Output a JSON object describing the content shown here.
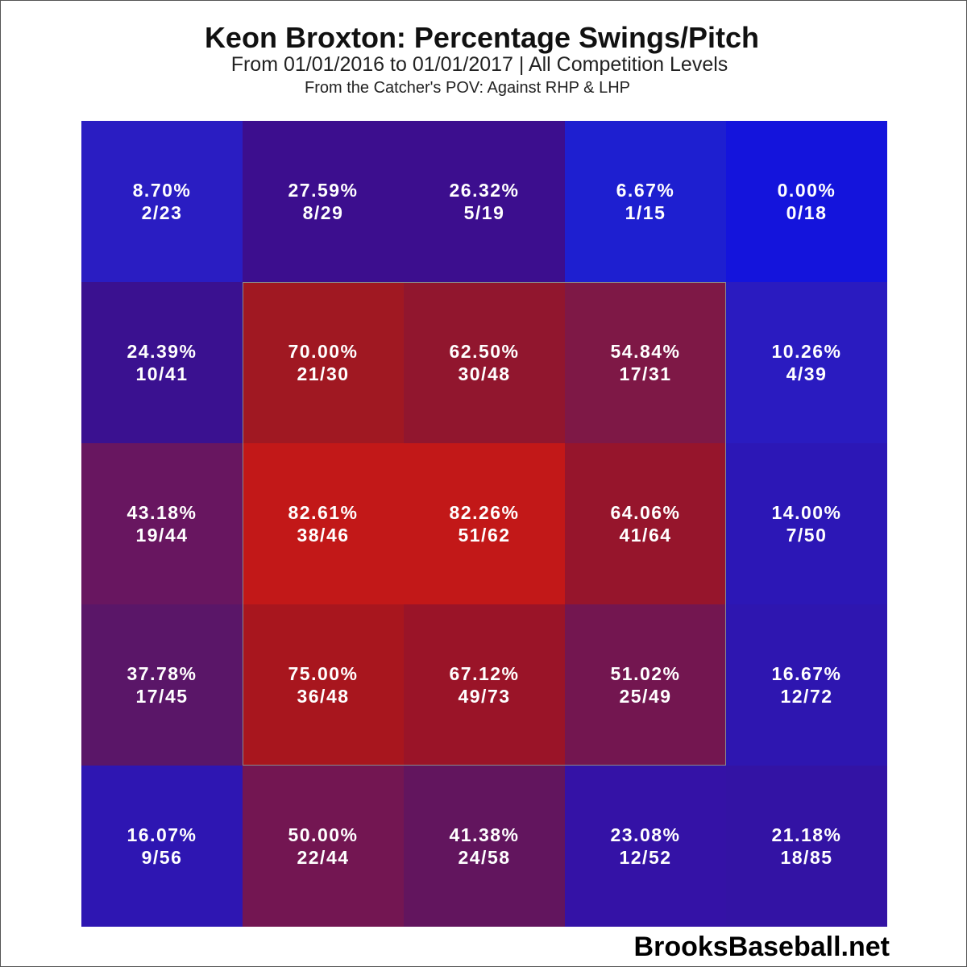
{
  "chart_data": {
    "type": "heatmap",
    "title": "Keon Broxton: Percentage Swings/Pitch",
    "subtitle": "From 01/01/2016 to 01/01/2017 | All Competition Levels",
    "subtitle2": "From the Catcher's POV:   Against RHP & LHP",
    "rows": 5,
    "cols": 5,
    "strike_zone": {
      "rows": [
        1,
        3
      ],
      "cols": [
        1,
        3
      ]
    },
    "cells": [
      [
        {
          "pct": "8.70%",
          "frac": "2/23",
          "value": 8.7,
          "color": "#2a1dc2"
        },
        {
          "pct": "27.59%",
          "frac": "8/29",
          "value": 27.59,
          "color": "#3c0e8e"
        },
        {
          "pct": "26.32%",
          "frac": "5/19",
          "value": 26.32,
          "color": "#3c0e8e"
        },
        {
          "pct": "6.67%",
          "frac": "1/15",
          "value": 6.67,
          "color": "#1e1fd0"
        },
        {
          "pct": "0.00%",
          "frac": "0/18",
          "value": 0.0,
          "color": "#1414dc"
        }
      ],
      [
        {
          "pct": "24.39%",
          "frac": "10/41",
          "value": 24.39,
          "color": "#3a1190"
        },
        {
          "pct": "70.00%",
          "frac": "21/30",
          "value": 70.0,
          "color": "#a01822"
        },
        {
          "pct": "62.50%",
          "frac": "30/48",
          "value": 62.5,
          "color": "#91162e"
        },
        {
          "pct": "54.84%",
          "frac": "17/31",
          "value": 54.84,
          "color": "#7e1846"
        },
        {
          "pct": "10.26%",
          "frac": "4/39",
          "value": 10.26,
          "color": "#2a1bc0"
        }
      ],
      [
        {
          "pct": "43.18%",
          "frac": "19/44",
          "value": 43.18,
          "color": "#681660"
        },
        {
          "pct": "82.61%",
          "frac": "38/46",
          "value": 82.61,
          "color": "#c21818"
        },
        {
          "pct": "82.26%",
          "frac": "51/62",
          "value": 82.26,
          "color": "#c21818"
        },
        {
          "pct": "64.06%",
          "frac": "41/64",
          "value": 64.06,
          "color": "#96152c"
        },
        {
          "pct": "14.00%",
          "frac": "7/50",
          "value": 14.0,
          "color": "#2c17b6"
        }
      ],
      [
        {
          "pct": "37.78%",
          "frac": "17/45",
          "value": 37.78,
          "color": "#5a1668"
        },
        {
          "pct": "75.00%",
          "frac": "36/48",
          "value": 75.0,
          "color": "#a8161e"
        },
        {
          "pct": "67.12%",
          "frac": "49/73",
          "value": 67.12,
          "color": "#9a1428"
        },
        {
          "pct": "51.02%",
          "frac": "25/49",
          "value": 51.02,
          "color": "#731650"
        },
        {
          "pct": "16.67%",
          "frac": "12/72",
          "value": 16.67,
          "color": "#2e16b0"
        }
      ],
      [
        {
          "pct": "16.07%",
          "frac": "9/56",
          "value": 16.07,
          "color": "#2e16b2"
        },
        {
          "pct": "50.00%",
          "frac": "22/44",
          "value": 50.0,
          "color": "#731652"
        },
        {
          "pct": "41.38%",
          "frac": "24/58",
          "value": 41.38,
          "color": "#62155e"
        },
        {
          "pct": "23.08%",
          "frac": "12/52",
          "value": 23.08,
          "color": "#3412a6"
        },
        {
          "pct": "21.18%",
          "frac": "18/85",
          "value": 21.18,
          "color": "#3313a4"
        }
      ]
    ]
  },
  "watermark": "BrooksBaseball.net"
}
